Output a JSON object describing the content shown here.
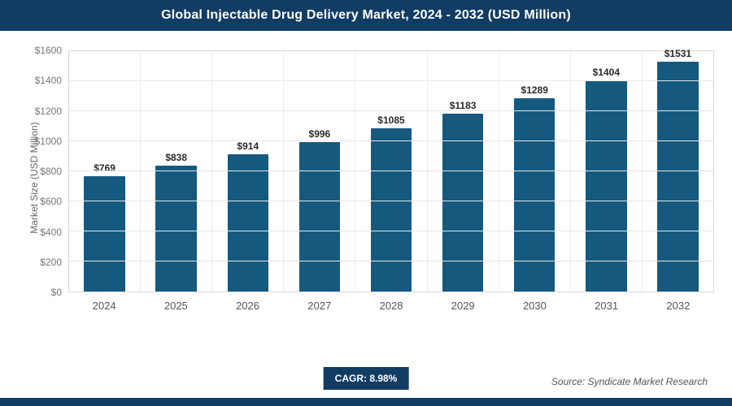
{
  "header": {
    "title": "Global Injectable Drug Delivery Market, 2024 - 2032 (USD Million)"
  },
  "chart_data": {
    "type": "bar",
    "title": "Global Injectable Drug Delivery Market, 2024 - 2032 (USD Million)",
    "categories": [
      "2024",
      "2025",
      "2026",
      "2027",
      "2028",
      "2029",
      "2030",
      "2031",
      "2032"
    ],
    "values": [
      769,
      838,
      914,
      996,
      1085,
      1183,
      1289,
      1404,
      1531
    ],
    "value_labels": [
      "$769",
      "$838",
      "$914",
      "$996",
      "$1085",
      "$1183",
      "$1289",
      "$1404",
      "$1531"
    ],
    "xlabel": "",
    "ylabel": "Market Size (USD Million)",
    "ylim": [
      0,
      1600
    ],
    "ytick_step": 200,
    "ytick_prefix": "$",
    "grid": "on",
    "legend": "none",
    "bar_color": "#15597f"
  },
  "colors": {
    "accent_navy": "#113c64",
    "bar": "#15597f",
    "gridline": "#e7e7e7"
  },
  "footer": {
    "cagr_label": "CAGR: 8.98%",
    "source": "Source: Syndicate Market Research"
  }
}
